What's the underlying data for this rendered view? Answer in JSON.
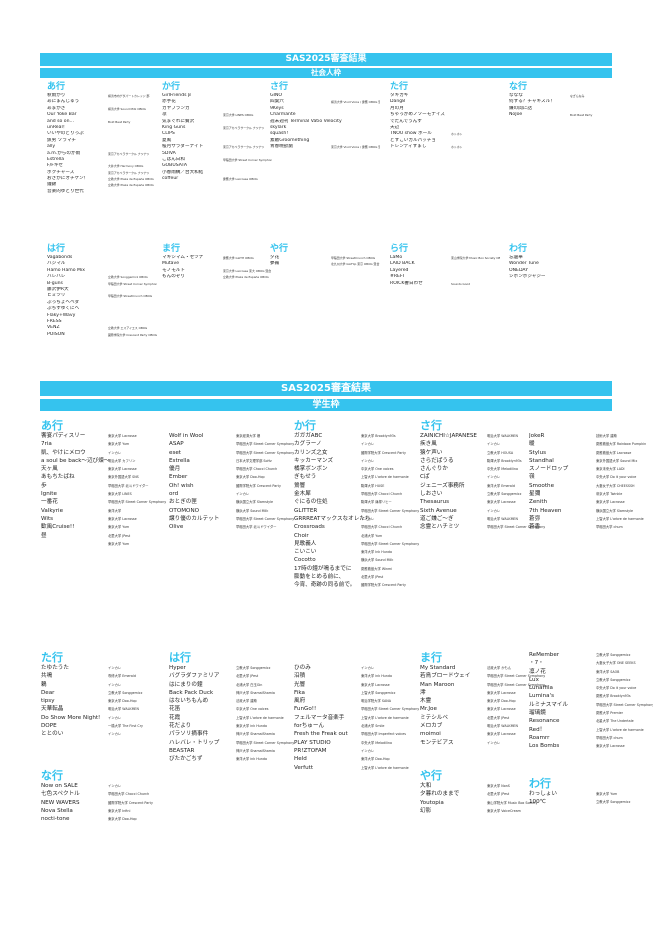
{
  "page": {
    "shakai": {
      "title": "SAS2025審査結果",
      "subtitle": "社会人枠",
      "sections": [
        {
          "head": "あ行",
          "rows": [
            [
              "秋雨がり",
              "横浜市内ゲダパートカレッジ 部"
            ],
            [
              "あにまんじゅう",
              ""
            ],
            [
              "あまがさ",
              "横浜大学 Sound Milk OBOG"
            ],
            [
              "Our Yoke Bar",
              ""
            ],
            [
              "and so on…",
              "Bold Beat Party"
            ],
            [
              "unReal！",
              ""
            ],
            [
              "いいやのどりっぷ",
              ""
            ],
            [
              "魚男 ソラマチ",
              ""
            ],
            [
              "ally",
              ""
            ],
            [
              "a.m.からのか雨",
              "東京アカペラサークル ナツナツ"
            ],
            [
              "Estrella",
              ""
            ],
            [
              "F/Fキセ",
              "大井大学 Harmony OBOG"
            ],
            [
              "ボクチャーズ",
              "東京アカペラサークル ナツナツ"
            ],
            [
              "おさかにオチケン！",
              "立教大学 Plaza de España OBOG"
            ],
            [
              "鐘錦",
              "立教大学 Plaza de España OBOG"
            ],
            [
              "音楽的ゆとり世代",
              ""
            ]
          ]
        },
        {
          "head": "か行",
          "rows": [
            [
              "GirlFriends β",
              ""
            ],
            [
              "赤芋花",
              ""
            ],
            [
              "カヤブランカ",
              ""
            ],
            [
              "凛",
              "東京大学 LINES OBOG"
            ],
            [
              "気まぐれに贅沢",
              ""
            ],
            [
              "King Guns",
              "東京アカペラサークル ナツナツ"
            ],
            [
              "CLIPS",
              ""
            ],
            [
              "夏風",
              ""
            ],
            [
              "桜月サラダーナイト",
              "東京アカペラサークル ナツナツ"
            ],
            [
              "5DIVA",
              ""
            ],
            [
              "ごはん日和",
              "早稲田大学 Street Corner Symphony OBOG"
            ],
            [
              "GOBUSATA",
              ""
            ],
            [
              "小春雨構／台大和結",
              ""
            ],
            [
              "coffeur",
              "慶應大学 Lacrosse OBOG"
            ]
          ]
        },
        {
          "head": "さ行",
          "rows": [
            [
              "GINO",
              ""
            ],
            [
              "四葉六",
              "横浜大学 Vivid Voice / 慶應 OBOG 混合"
            ],
            [
              "9Keys",
              ""
            ],
            [
              "Charmante",
              ""
            ],
            [
              "週末週刊 Terminal Vatio Velocity",
              ""
            ],
            [
              "skylark",
              ""
            ],
            [
              "squash!",
              ""
            ],
            [
              "素敵Groomething",
              ""
            ],
            [
              "青春晩欲劇",
              "東京大学 Vivid Voice / 慶應 OBOG 混合"
            ]
          ]
        },
        {
          "head": "た行",
          "rows": [
            [
              "タキカギ",
              ""
            ],
            [
              "Dang8",
              ""
            ],
            [
              "月の月",
              ""
            ],
            [
              "ちゃっかめノソーモナイズ",
              ""
            ],
            [
              "でたんでうんす",
              ""
            ],
            [
              "天辺",
              ""
            ],
            [
              "TNOU show ホール",
              "ホトホト"
            ],
            [
              "どすこいカルパッチョ",
              ""
            ],
            [
              "トレンディすまし",
              "ホトホト"
            ]
          ]
        },
        {
          "head": "な行",
          "rows": [
            [
              "ななな",
              "なぎんなみ"
            ],
            [
              "何する？チャキスル！",
              ""
            ],
            [
              "嫌の間に話",
              ""
            ],
            [
              "NoJoe",
              "Bold Beat Party"
            ]
          ]
        },
        {
          "head": "は行",
          "rows": [
            [
              "Vagabonds",
              ""
            ],
            [
              "ハジマル",
              ""
            ],
            [
              "Hamo Hamo Mix",
              ""
            ],
            [
              "ハレバレ",
              "立教大学 Songgemicz OBOG"
            ],
            [
              "B-guns",
              "早稲田大学 Street Corner Symphony OBOG"
            ],
            [
              "藤沢伊R大",
              ""
            ],
            [
              "ヒミツリ",
              "早稲田大学 StreetCrunch OBOG"
            ],
            [
              "ぶっちょヘベダ",
              ""
            ],
            [
              "ぶちすゆくにへ",
              ""
            ],
            [
              "Flaky+Wavy",
              ""
            ],
            [
              "FRESS",
              ""
            ],
            [
              "VENZ",
              "立教大学 エスアイエス OBOG"
            ],
            [
              "POISON",
              "國際学院大学 Crescent Party OBOG 混合"
            ]
          ]
        },
        {
          "head": "ま行",
          "rows": [
            [
              "マキシマム・セツナ",
              "慶應大学 GLITH OBOG"
            ],
            [
              "Mutave",
              ""
            ],
            [
              "モノモルト",
              "東京大学 Lacrosse 東大 OBOG 混合"
            ],
            [
              "もんのぞり",
              "立教大学 Plaza de España OBOG"
            ]
          ]
        },
        {
          "head": "や行",
          "rows": [
            [
              "夕花",
              "早稲田大学 StreetCrunch OBOG"
            ],
            [
              "夢霧",
              "北九州大学 GloFlip 東京 OBOG 混合"
            ]
          ]
        },
        {
          "head": "ら行",
          "rows": [
            [
              "LaMo",
              "東山学院大学 Music Box Society OBOG"
            ],
            [
              "LAID BACK",
              ""
            ],
            [
              "Layered",
              ""
            ],
            [
              "#REFI",
              ""
            ],
            [
              "ROICK響日わせ",
              "Sounds Good"
            ]
          ]
        },
        {
          "head": "わ行",
          "rows": [
            [
              "忘還華",
              ""
            ],
            [
              "Wonder Tune",
              ""
            ],
            [
              "ONEDAY",
              ""
            ],
            [
              "シボンボジャジー",
              ""
            ]
          ]
        }
      ]
    },
    "gakusei": {
      "title": "SAS2025審査結果",
      "subtitle": "学生枠",
      "sections": [
        {
          "head": "あ行",
          "rows": [
            [
              "饗宴パディスリー",
              "東京大学 Lacrosse"
            ],
            [
              "7ria",
              "東京大学 Yum"
            ],
            [
              "凱、やけにメロウ",
              "インカレ"
            ],
            [
              "a soul be back〜辺び煉〜",
              "明治大学 カフリン"
            ],
            [
              "天ヶ風",
              "東京大学 Lacrosse"
            ],
            [
              "あもちたばね",
              "東京外国語大学 SNS"
            ],
            [
              "歩",
              "早稲田大学 北斗ドワイダー"
            ],
            [
              "Ignite",
              "東京大学 LINES"
            ],
            [
              "一番花",
              "早稲田大学 Street Corner Symphony"
            ],
            [
              "Valkyrie",
              "東洋大学"
            ],
            [
              "Wits",
              "東京大学 Lacrosse"
            ],
            [
              "歓風Cruise!!",
              "東京大学 Yum"
            ],
            [
              "昼",
              "北里大学 JPest"
            ],
            [
              "",
              "東京大学 Yum"
            ]
          ]
        },
        {
          "head": "",
          "rows": [
            [
              "Wolf in Wool",
              "東京経済大学 爆"
            ],
            [
              "ASAP",
              "早稲田大学 Street Corner Symphony"
            ],
            [
              "eset",
              "早稲田大学 Street Corner Symphony"
            ],
            [
              "Estrella",
              "日本大学文理学部 SoHz"
            ],
            [
              "優月",
              "早稲田大学 Chocci Church"
            ],
            [
              "Ember",
              "東京大学 Doo-Hop"
            ],
            [
              "Oh! wish",
              "國際学院大学 Crescent Party"
            ],
            [
              "ord",
              "インカレ"
            ],
            [
              "おとぎの匣",
              "横浜国立大学 Slamstyle"
            ],
            [
              "OTOMONO",
              "横浜大学 Sound Milk"
            ],
            [
              "譲り優のカルテット",
              "早稲田大学 Street Corner Symphony"
            ],
            [
              "Olive",
              "早稲田大学 北斗ドワイダー"
            ]
          ]
        },
        {
          "head": "か行",
          "rows": [
            [
              "ガガガABC",
              "東京大学 Brooklyn93s"
            ],
            [
              "カグラーノ",
              "インカレ"
            ],
            [
              "カリンズ之女",
              "國際学院大学 Crescent Party"
            ],
            [
              "キッカーマンズ",
              "インカレ"
            ],
            [
              "橘掌ボンボン",
              "中京大学 One voices"
            ],
            [
              "ぎもせう",
              "上智大学 L'arbre de harmonie"
            ],
            [
              "鶯響",
              "駒澤大学 HUSE"
            ],
            [
              "金木犀",
              "早稲田大学 Chocci Church"
            ],
            [
              "ぐにるの住処",
              "駒澤大学 篠塚リヒー"
            ],
            [
              "GLITTER",
              "早稲田大学 Street Corner Symphony"
            ],
            [
              "GRRREATマックスなオレたち",
              "インカレ"
            ],
            [
              "Crossroads",
              "早稲田大学 Chocci Church"
            ],
            [
              "Choir",
              "北浦大学 Yum"
            ],
            [
              "見歌義人",
              "早稲田大学 Street Corner Symphony"
            ],
            [
              "こいこい",
              "東洋大学 Ink Hundo"
            ],
            [
              "Cocotto",
              "横浜大学 Sound Milk"
            ],
            [
              "17時の鐘が鳴るまでに",
              "慶應義塾大学 Winmi"
            ],
            [
              "膨動をとめる前に、",
              "北里大学 JPest"
            ],
            [
              "今宵、奇跡の同る前で。",
              "國際学院大学 Crescent Party"
            ]
          ]
        },
        {
          "head": "さ行",
          "rows": [
            [
              "ZAINICHI☆JAPANESE",
              "明治大学 WALKMEN"
            ],
            [
              "疾き風",
              "インカレ"
            ],
            [
              "猿ケ声い",
              "立教大学 HOUSA"
            ],
            [
              "さらだぱうる",
              "駒澤大学 Brooklyn93s"
            ],
            [
              "さんぐりか",
              "中央大学 Melodilino"
            ],
            [
              "Cぱ",
              "インカレ"
            ],
            [
              "ジェニーズ事務所",
              "東洋大学 Emerald"
            ],
            [
              "しおさい",
              "立教大学 Songgemicz"
            ],
            [
              "Thesaurus",
              "東京大学 Lacrosse"
            ],
            [
              "Sixth Avenue",
              "インカレ"
            ],
            [
              "道ご嫌ご〜ぎ",
              "明治大学 WALKMEN"
            ],
            [
              "念霊とハチミツ",
              "早稲田大学 Street Corner Symphony"
            ]
          ]
        },
        {
          "head": "",
          "rows": [
            [
              "JokeR",
              "技術大学 建築"
            ],
            [
              "暖",
              "慶應義塾大学 Rainbow Pumpkin"
            ],
            [
              "Stylus",
              "慶應義塾大学 Lacrosse"
            ],
            [
              "Standhal",
              "東京外国語大学 Sound Mix"
            ],
            [
              "スノードロップ",
              "東京未来大学 LADI"
            ],
            [
              "嶺",
              "中央大学 Do it your voice"
            ],
            [
              "Smoothe",
              "大妻女子大学 CHEESSSH"
            ],
            [
              "星彌",
              "帝京大学 Twinkle"
            ],
            [
              "Zenith",
              "東京大学 Lacrosse"
            ],
            [
              "7th Heaven",
              "横浜国立大学 Slamstyle"
            ],
            [
              "蒼弥",
              "上智大学 L'arbre de harmonie"
            ],
            [
              "蒼香",
              "早稲田大学 chum"
            ]
          ]
        },
        {
          "head": "た行",
          "rows": [
            [
              "たゆたうた",
              "インカレ"
            ],
            [
              "共鳴",
              "専修大学 Emerald"
            ],
            [
              "鶫",
              "インカレ"
            ],
            [
              "Dear",
              "立教大学 Songgemicz"
            ],
            [
              "tipsy",
              "東京大学 Doo-Hop"
            ],
            [
              "天華転晶",
              "明治大学 WALKMEN"
            ],
            [
              "Do Show More Night!",
              "インカレ"
            ],
            [
              "DOPE",
              "一橋大学 The First Cry"
            ],
            [
              "ととのい",
              "インカレ"
            ]
          ]
        },
        {
          "head": "は行",
          "rows": [
            [
              "Hyper",
              "立教大学 Songgemicz"
            ],
            [
              "バグラダファミリア",
              "北里大学 JPest"
            ],
            [
              "はにまりの鐘",
              "北浦大学 白玉Gin"
            ],
            [
              "Back Pack Duck",
              "神戸大学 ShamalShamia"
            ],
            [
              "はないちもんめ",
              "法政大学 建築"
            ],
            [
              "花笛",
              "中京大学 One voices"
            ],
            [
              "花霞",
              "上智大学 L'arbre de harmonie"
            ],
            [
              "花だより",
              "東京大学 ink Hundo"
            ],
            [
              "パラソリ摘事件",
              "神戸大学 ShamalShamia"
            ],
            [
              "ハレバレ・トリップ",
              "早稲田大学 Street Corner Symphony"
            ],
            [
              "BEASTAR",
              "神戸大学 ShamalShamia"
            ],
            [
              "びたかごちず",
              "東洋大学 ink Hundo"
            ]
          ]
        },
        {
          "head": "",
          "rows": [
            [
              "ひのみ",
              "インカレ"
            ],
            [
              "沿積",
              "東洋大学 ink Hundo"
            ],
            [
              "光響",
              "東京大学 Lacrosse"
            ],
            [
              "Fika",
              "上智大学 Songgemicz"
            ],
            [
              "風府",
              "明治学院大学 SANA"
            ],
            [
              "FunGo!!",
              "早稲田大学 Street Corner Symphony"
            ],
            [
              "フェルマータ音楽手",
              "上智大学 L'arbre de harmonie"
            ],
            [
              "forちゅーん",
              "北浦大学 Smile"
            ],
            [
              "Fresh the Freak out",
              "早稲田大学 Imperfect voices"
            ],
            [
              "PLAY STUDIO",
              "中央大学 Melodilino"
            ],
            [
              "PR!ZTOFAM",
              "インカレ"
            ],
            [
              "Held",
              "東洋大学 Doo-Hop"
            ],
            [
              "Verfutt",
              "上智大学 L'arbre de harmonie"
            ]
          ]
        },
        {
          "head": "ま行",
          "rows": [
            [
              "My Standard",
              "法政大学 かもん"
            ],
            [
              "若鳥ブロードウェイ",
              "早稲田大学 Street Corner Symphony"
            ],
            [
              "Man Maroon",
              "早稲田大学 Street Corner Symphony"
            ],
            [
              "澪",
              "東京大学 Lacrosse"
            ],
            [
              "木霊",
              "東京大学 Doo-Hop"
            ],
            [
              "Mr.Joe",
              "東京大学 Lacrosse"
            ],
            [
              "ミテシルベ",
              "北里大学 JPest"
            ],
            [
              "メロカブ",
              "明治大学 WALKMEN"
            ],
            [
              "moimoi",
              "東京大学 Lacrosse"
            ],
            [
              "モンテビアス",
              "インカレ"
            ]
          ]
        },
        {
          "head": "",
          "rows": [
            [
              "ReMember",
              "立教大学 Songgemicz"
            ],
            [
              "・7・",
              "大妻女子大学 ONE SEEKS"
            ],
            [
              "凛ノ花",
              "東洋大学 SAOB"
            ],
            [
              "Lux",
              "立教大学 Songgemicz"
            ],
            [
              "Lunaffila",
              "中央大学 Do it your voice"
            ],
            [
              "Lumina's",
              "慶應大学 Brooklyn93s"
            ],
            [
              "ルミナスマイル",
              "早稲田大学 Street Corner Symphony"
            ],
            [
              "瑠璃鏡",
              "慶應大学 Premier"
            ],
            [
              "Resonance",
              "北星大学 The Undertale"
            ],
            [
              "Red！",
              "上智大学 L'arbre de harmonie"
            ],
            [
              "Roamrr",
              "早稲田大学 chum"
            ],
            [
              "Los Bombs",
              "東京大学 Lacrosse"
            ]
          ]
        },
        {
          "head": "な行",
          "rows": [
            [
              "Now on SALE",
              "インカレ"
            ],
            [
              "七色スペクトル",
              "早稲田大学 Chocci Church"
            ],
            [
              "NEW WAVERS",
              "國際学院大学 Crescent Party"
            ],
            [
              "Nova Stella",
              "東京大学 Infini"
            ],
            [
              "nocti-tone",
              "東京大学 Doo-Hop"
            ]
          ]
        },
        {
          "head": "や行",
          "rows": [
            [
              "大和",
              "東京大学 NonS"
            ],
            [
              "夕暮れのままで",
              "北里大学 JPest"
            ],
            [
              "Youtopia",
              "東山学院大学 Music Box Society"
            ],
            [
              "幻影",
              "東京大学 VoiceCream"
            ]
          ]
        },
        {
          "head": "わ行",
          "rows": [
            [
              "わっしょい",
              "東京大学 Yum"
            ],
            [
              "100℃",
              "立教大学 Songgemicz"
            ]
          ]
        }
      ]
    }
  }
}
